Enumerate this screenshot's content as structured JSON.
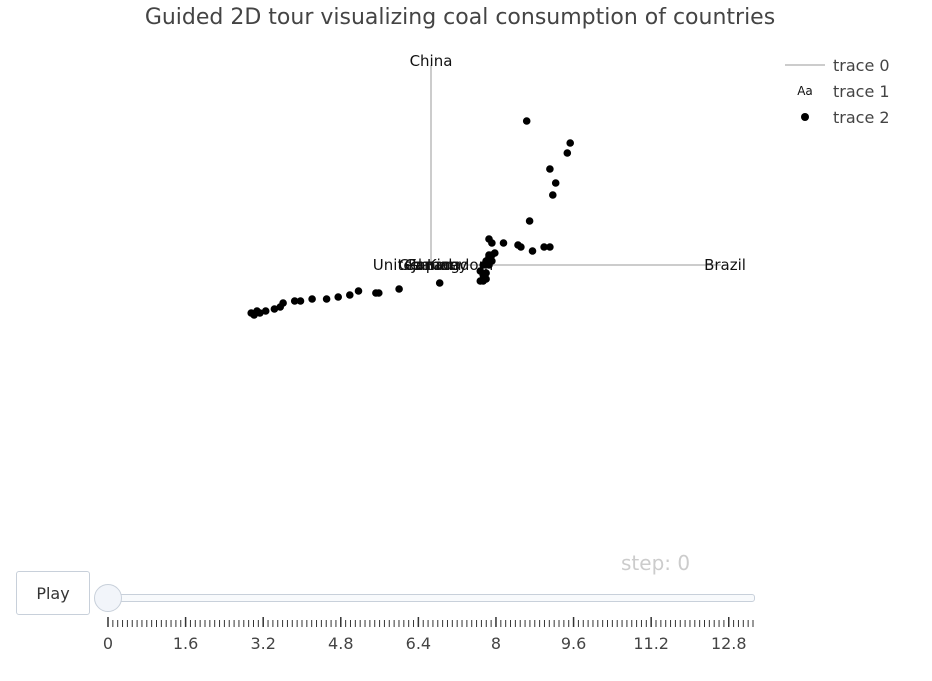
{
  "chart_data": {
    "type": "scatter",
    "title": "Guided 2D tour visualizing coal consumption of countries",
    "xlabel": "",
    "ylabel": "",
    "grid": false,
    "legend_position": "top-right",
    "axes_labels": [
      {
        "text": "China",
        "x": 0.0,
        "y": 1.0
      },
      {
        "text": "Brazil",
        "x": 1.0,
        "y": 0.0
      },
      {
        "text": "United Kingdom",
        "x": 0.0,
        "y": 0.0
      },
      {
        "text": "Canada",
        "x": 0.0,
        "y": 0.0
      },
      {
        "text": "Germany",
        "x": 0.0,
        "y": 0.0
      },
      {
        "text": "France",
        "x": 0.0,
        "y": 0.0
      },
      {
        "text": "Japan",
        "x": 0.0,
        "y": 0.0
      }
    ],
    "series": [
      {
        "name": "trace 0",
        "kind": "lines",
        "color": "#cccccc"
      },
      {
        "name": "trace 1",
        "kind": "text",
        "color": "#111111"
      },
      {
        "name": "trace 2",
        "kind": "markers",
        "color": "#000000",
        "points": [
          [
            0.33,
            0.72
          ],
          [
            0.48,
            0.61
          ],
          [
            0.47,
            0.56
          ],
          [
            0.41,
            0.48
          ],
          [
            0.43,
            0.41
          ],
          [
            0.42,
            0.35
          ],
          [
            0.34,
            0.22
          ],
          [
            0.41,
            0.09
          ],
          [
            0.35,
            0.07
          ],
          [
            0.39,
            0.09
          ],
          [
            0.31,
            0.09
          ],
          [
            0.3,
            0.1
          ],
          [
            0.25,
            0.11
          ],
          [
            0.2,
            0.13
          ],
          [
            0.21,
            0.11
          ],
          [
            0.22,
            0.06
          ],
          [
            0.21,
            0.05
          ],
          [
            0.2,
            0.05
          ],
          [
            0.2,
            0.04
          ],
          [
            0.21,
            0.02
          ],
          [
            0.19,
            0.02
          ],
          [
            0.2,
            0.0
          ],
          [
            0.18,
            0.0
          ],
          [
            0.17,
            -0.03
          ],
          [
            0.18,
            -0.05
          ],
          [
            0.19,
            -0.07
          ],
          [
            0.19,
            -0.04
          ],
          [
            0.18,
            -0.07
          ],
          [
            0.17,
            -0.08
          ],
          [
            0.18,
            -0.08
          ],
          [
            0.03,
            -0.09
          ],
          [
            -0.11,
            -0.12
          ],
          [
            -0.18,
            -0.14
          ],
          [
            -0.19,
            -0.14
          ],
          [
            -0.25,
            -0.13
          ],
          [
            -0.28,
            -0.15
          ],
          [
            -0.32,
            -0.16
          ],
          [
            -0.36,
            -0.17
          ],
          [
            -0.41,
            -0.17
          ],
          [
            -0.45,
            -0.18
          ],
          [
            -0.51,
            -0.19
          ],
          [
            -0.47,
            -0.18
          ],
          [
            -0.52,
            -0.21
          ],
          [
            -0.54,
            -0.22
          ],
          [
            -0.57,
            -0.23
          ],
          [
            -0.59,
            -0.24
          ],
          [
            -0.61,
            -0.25
          ],
          [
            -0.6,
            -0.23
          ],
          [
            -0.62,
            -0.24
          ]
        ]
      }
    ]
  },
  "legend": {
    "items": [
      {
        "label": "trace 0",
        "symbol": "line"
      },
      {
        "label": "trace 1",
        "symbol": "Aa"
      },
      {
        "label": "trace 2",
        "symbol": "dot"
      }
    ]
  },
  "controls": {
    "play_label": "Play",
    "step_prefix": "step: ",
    "step_value": "0",
    "step_text": "step: 0",
    "slider_value": 0,
    "slider_max": 13.3,
    "slider_tick_labels": [
      "0",
      "1.6",
      "3.2",
      "4.8",
      "6.4",
      "8",
      "9.6",
      "11.2",
      "12.8"
    ]
  }
}
